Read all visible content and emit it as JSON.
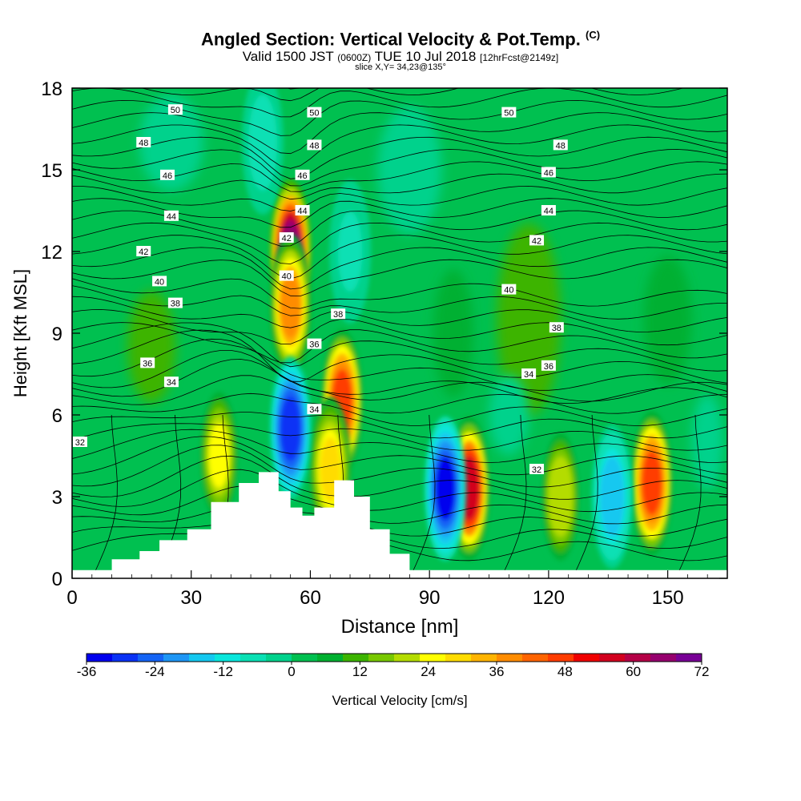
{
  "titles": {
    "main": "Angled Section: Vertical Velocity & Pot.Temp.",
    "main_units": "(C)",
    "valid_prefix": "Valid 1500 JST",
    "valid_zulu": "(0600Z)",
    "valid_date": "TUE 10 Jul 2018",
    "forecast": "[12hrFcst@2149z]",
    "slice": "slice X,Y= 34,23@135°"
  },
  "chart_data": {
    "type": "heatmap",
    "title": "Angled Section: Vertical Velocity & Pot.Temp. (C)",
    "xlabel": "Distance [nm]",
    "ylabel": "Height [Kft MSL]",
    "xlim": [
      0,
      165
    ],
    "ylim": [
      0,
      18
    ],
    "xticks": [
      0,
      30,
      60,
      90,
      120,
      150
    ],
    "yticks": [
      0,
      3,
      6,
      9,
      12,
      15,
      18
    ],
    "colorbar": {
      "label": "Vertical Velocity [cm/s]",
      "ticks": [
        -36,
        -24,
        -12,
        0,
        12,
        24,
        36,
        48,
        60,
        72
      ],
      "range": [
        -36,
        72
      ],
      "colors": [
        "#0000ee",
        "#0a32f5",
        "#1464f5",
        "#1e96f5",
        "#14c8f0",
        "#0ae6dc",
        "#0ae0b4",
        "#00d28c",
        "#00c050",
        "#00b030",
        "#3cb400",
        "#78c800",
        "#b4dc00",
        "#ffff00",
        "#ffdc00",
        "#ffb400",
        "#ff8c00",
        "#ff6400",
        "#ff3c00",
        "#f00000",
        "#d2001e",
        "#b40046",
        "#96006e",
        "#780096"
      ]
    },
    "contour_labels": [
      "50",
      "48",
      "46",
      "44",
      "42",
      "40",
      "38",
      "36",
      "34",
      "32"
    ],
    "vertical_velocity_cells": [
      {
        "x": 55,
        "y": 12.0,
        "value": 66
      },
      {
        "x": 55,
        "y": 10.0,
        "value": 40
      },
      {
        "x": 68,
        "y": 6.5,
        "value": 48
      },
      {
        "x": 65,
        "y": 4.0,
        "value": 30
      },
      {
        "x": 100,
        "y": 3.3,
        "value": 55
      },
      {
        "x": 146,
        "y": 3.5,
        "value": 48
      },
      {
        "x": 37,
        "y": 4.5,
        "value": 24
      },
      {
        "x": 123,
        "y": 3.0,
        "value": 22
      },
      {
        "x": 55,
        "y": 5.5,
        "value": -30
      },
      {
        "x": 94,
        "y": 3.3,
        "value": -32
      },
      {
        "x": 136,
        "y": 3.0,
        "value": -18
      },
      {
        "x": 48,
        "y": 16.0,
        "value": -8
      },
      {
        "x": 70,
        "y": 12.0,
        "value": -6
      }
    ],
    "terrain": [
      {
        "x": 0,
        "h": 0.3
      },
      {
        "x": 10,
        "h": 0.7
      },
      {
        "x": 17,
        "h": 1.0
      },
      {
        "x": 22,
        "h": 1.4
      },
      {
        "x": 29,
        "h": 1.8
      },
      {
        "x": 35,
        "h": 2.8
      },
      {
        "x": 42,
        "h": 3.5
      },
      {
        "x": 47,
        "h": 3.9
      },
      {
        "x": 52,
        "h": 3.2
      },
      {
        "x": 55,
        "h": 2.6
      },
      {
        "x": 58,
        "h": 2.3
      },
      {
        "x": 61,
        "h": 2.6
      },
      {
        "x": 66,
        "h": 3.6
      },
      {
        "x": 71,
        "h": 3.0
      },
      {
        "x": 75,
        "h": 1.8
      },
      {
        "x": 80,
        "h": 0.9
      },
      {
        "x": 85,
        "h": 0.3
      },
      {
        "x": 90,
        "h": 0.3
      },
      {
        "x": 165,
        "h": 0.3
      }
    ],
    "grid": false
  }
}
